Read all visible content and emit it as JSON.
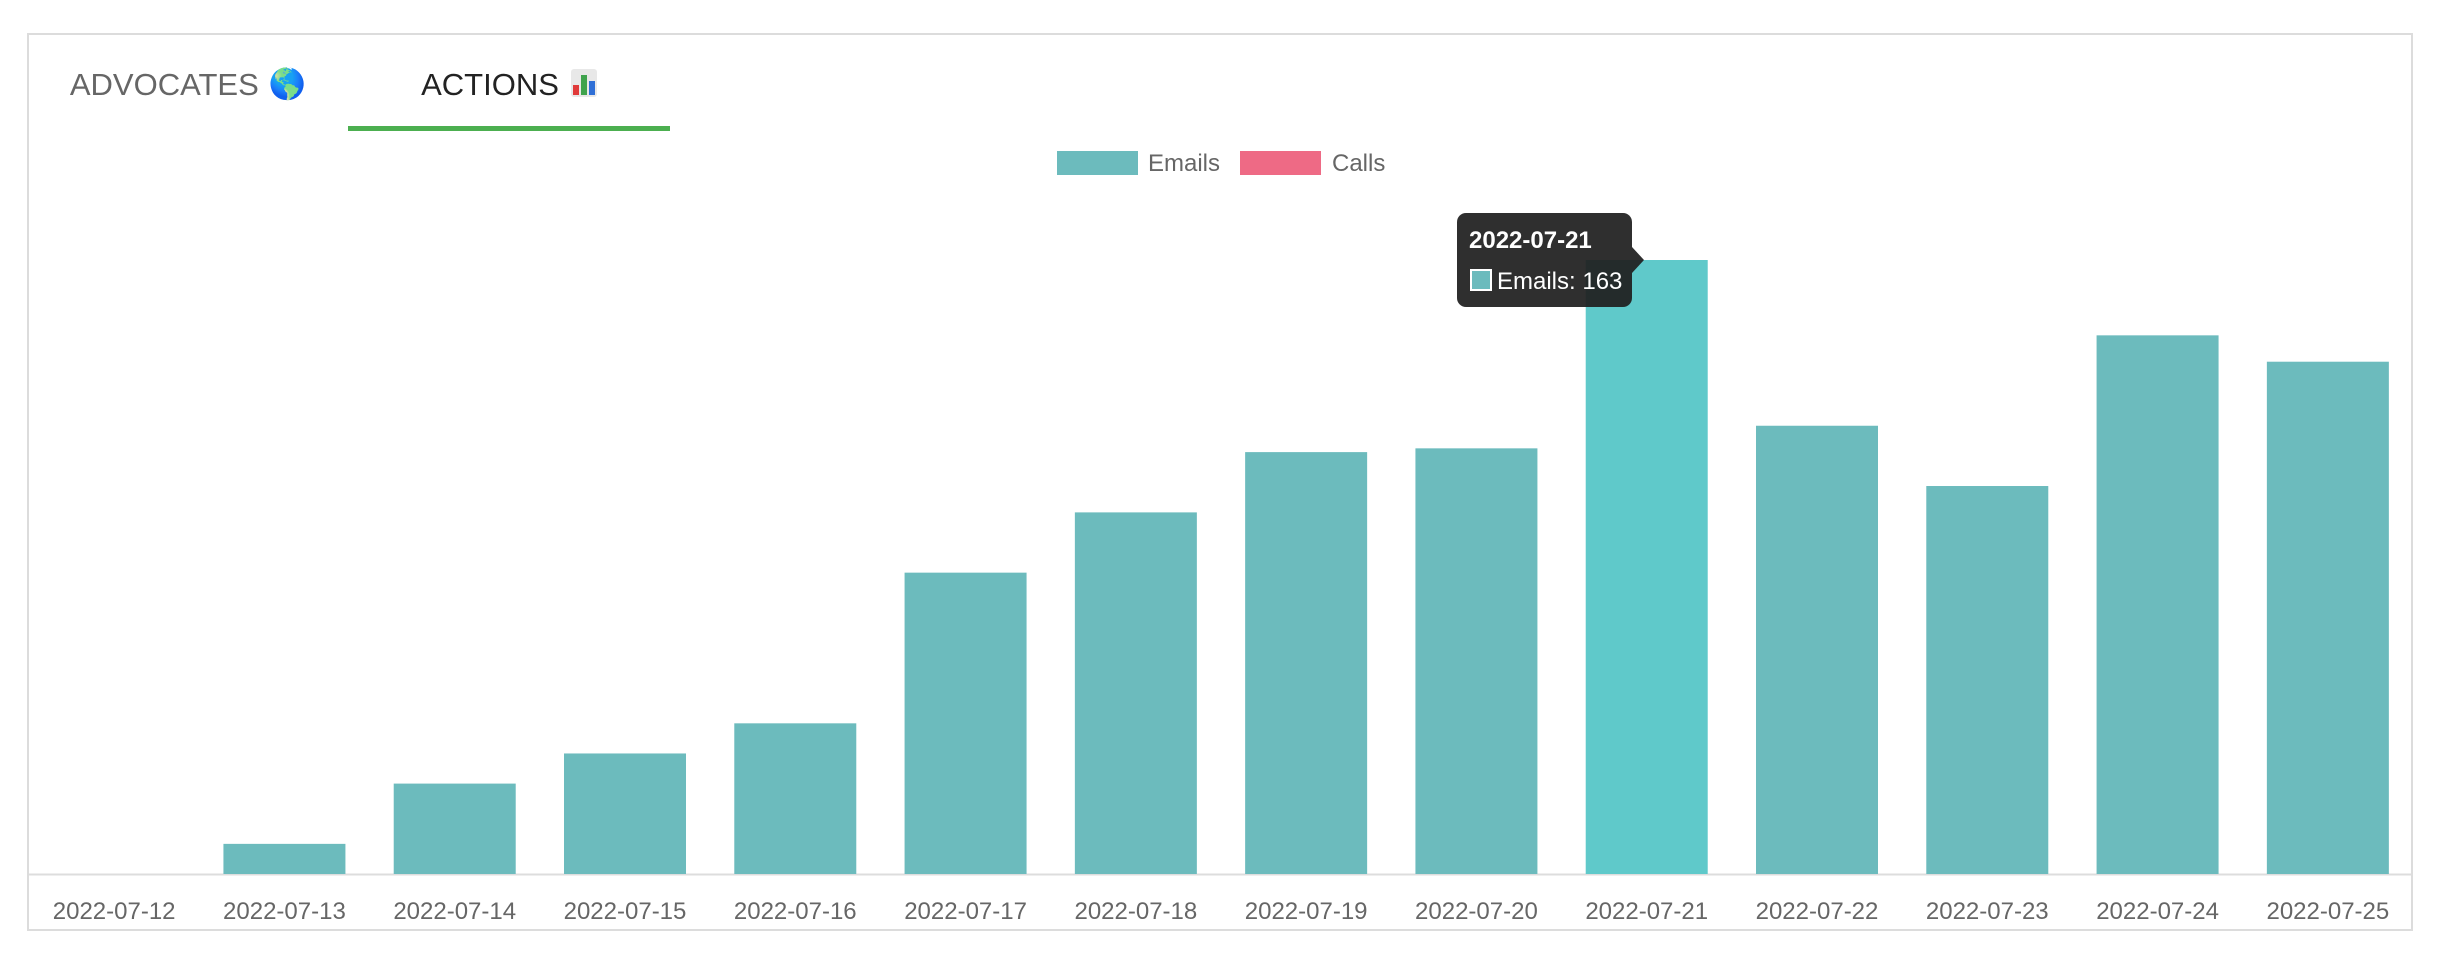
{
  "tabs": [
    {
      "label": "ADVOCATES",
      "icon": "globe-icon",
      "active": false
    },
    {
      "label": "ACTIONS",
      "icon": "bar-chart-icon",
      "active": true
    }
  ],
  "colors": {
    "emails": "#6cbbbd",
    "emails_highlight": "#5fc9ca",
    "calls": "#ee6a85",
    "tab_active_underline": "#4caf50",
    "tooltip_bg": "#1f1f1f"
  },
  "chart_data": {
    "type": "bar",
    "categories": [
      "2022-07-12",
      "2022-07-13",
      "2022-07-14",
      "2022-07-15",
      "2022-07-16",
      "2022-07-17",
      "2022-07-18",
      "2022-07-19",
      "2022-07-20",
      "2022-07-21",
      "2022-07-22",
      "2022-07-23",
      "2022-07-24",
      "2022-07-25"
    ],
    "series": [
      {
        "name": "Emails",
        "values": [
          0,
          8,
          24,
          32,
          40,
          80,
          96,
          112,
          113,
          163,
          119,
          103,
          143,
          136
        ]
      },
      {
        "name": "Calls",
        "values": [
          0,
          0,
          0,
          0,
          0,
          0,
          0,
          0,
          0,
          0,
          0,
          0,
          0,
          0
        ]
      }
    ],
    "ylim": [
      0,
      163
    ],
    "legend_position": "top-center",
    "grid": false,
    "highlighted_index": 9,
    "tooltip": {
      "title": "2022-07-21",
      "series": "Emails",
      "label": "Emails: 163"
    }
  }
}
